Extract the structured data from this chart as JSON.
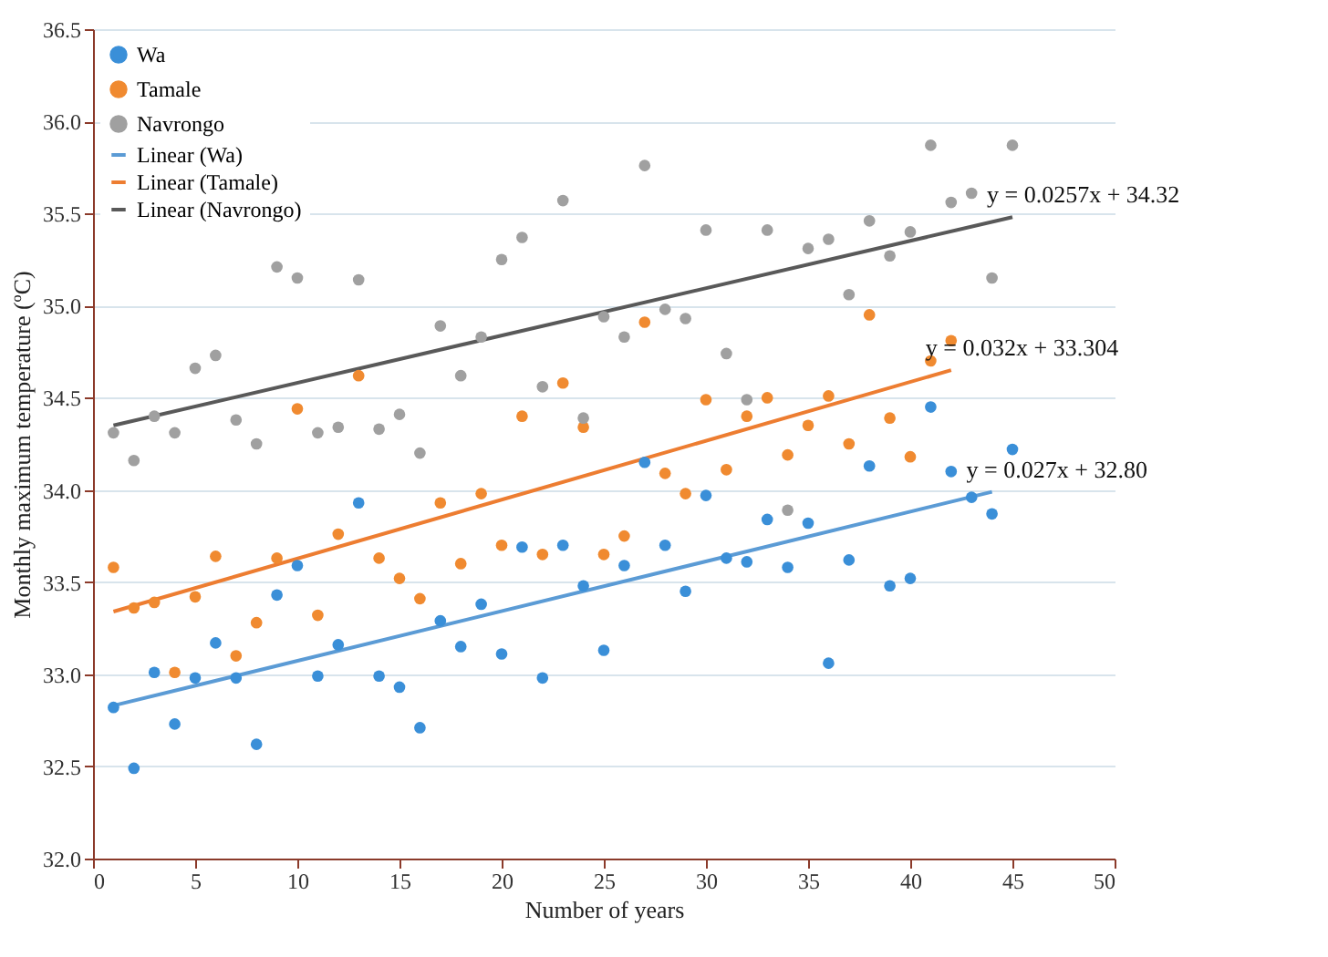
{
  "chart_data": {
    "type": "scatter",
    "xlabel": "Number of years",
    "ylabel": "Monthly maximum temperature (ºC)",
    "xlim": [
      0,
      50
    ],
    "xticks": [
      0,
      5,
      10,
      15,
      20,
      25,
      30,
      35,
      40,
      45,
      50
    ],
    "ylim": [
      32.0,
      36.5
    ],
    "yticks": [
      {
        "value": 32,
        "label": "32.0"
      },
      {
        "value": 32.5,
        "label": "32.5"
      },
      {
        "value": 33,
        "label": "33.0"
      },
      {
        "value": 33.5,
        "label": "33.5"
      },
      {
        "value": 34,
        "label": "34.0"
      },
      {
        "value": 34.5,
        "label": "34.5"
      },
      {
        "value": 35,
        "label": "35.0"
      },
      {
        "value": 35.5,
        "label": "35.5"
      },
      {
        "value": 36,
        "label": "36.0"
      },
      {
        "value": 36.5,
        "label": "36.5"
      }
    ],
    "grid": "y",
    "legend": "top left",
    "marker": "circle",
    "line_style": "solid",
    "x": [
      1,
      2,
      3,
      4,
      5,
      6,
      7,
      8,
      9,
      10,
      11,
      12,
      13,
      14,
      15,
      16,
      17,
      18,
      19,
      20,
      21,
      22,
      23,
      24,
      25,
      26,
      27,
      28,
      29,
      30,
      31,
      32,
      33,
      34,
      35,
      36,
      37,
      38,
      39,
      40,
      41,
      42,
      43,
      44,
      45
    ],
    "series": [
      {
        "name": "Wa",
        "color": "#3a8fd8",
        "values": [
          32.82,
          32.49,
          33.01,
          32.73,
          32.98,
          33.17,
          32.98,
          32.62,
          33.43,
          33.59,
          32.99,
          33.16,
          33.93,
          32.99,
          32.93,
          32.71,
          33.29,
          33.15,
          33.38,
          33.11,
          33.69,
          32.98,
          33.7,
          33.48,
          33.13,
          33.59,
          34.15,
          33.7,
          33.45,
          33.97,
          33.63,
          33.61,
          33.84,
          33.58,
          33.82,
          33.06,
          33.62,
          34.13,
          33.48,
          33.52,
          34.45,
          34.1,
          33.96,
          33.87,
          34.22
        ]
      },
      {
        "name": "Tamale",
        "color": "#f08a30",
        "x": [
          1,
          2,
          3,
          4,
          5,
          6,
          7,
          8,
          9,
          10,
          11,
          12,
          13,
          14,
          15,
          16,
          17,
          18,
          19,
          20,
          21,
          22,
          23,
          24,
          25,
          26,
          27,
          28,
          29,
          30,
          31,
          32,
          33,
          34,
          35,
          36,
          37,
          38,
          39,
          40,
          41,
          42
        ],
        "values": [
          33.58,
          33.36,
          33.39,
          33.01,
          33.42,
          33.64,
          33.1,
          33.28,
          33.63,
          34.44,
          33.32,
          33.76,
          34.62,
          33.63,
          33.52,
          33.41,
          33.93,
          33.6,
          33.98,
          33.7,
          34.4,
          33.65,
          34.58,
          34.34,
          33.65,
          33.75,
          34.91,
          34.09,
          33.98,
          34.49,
          34.11,
          34.4,
          34.5,
          34.19,
          34.35,
          34.51,
          34.25,
          34.95,
          34.39,
          34.18,
          34.7,
          34.81
        ]
      },
      {
        "name": "Navrongo",
        "color": "#a0a0a0",
        "values": [
          34.31,
          34.16,
          34.4,
          34.31,
          34.66,
          34.73,
          34.38,
          34.25,
          35.21,
          35.15,
          34.31,
          34.34,
          35.14,
          34.33,
          34.41,
          34.2,
          34.89,
          34.62,
          34.83,
          35.25,
          35.37,
          34.56,
          35.57,
          34.39,
          34.94,
          34.83,
          35.76,
          34.98,
          34.93,
          35.41,
          34.74,
          34.49,
          35.41,
          33.89,
          35.31,
          35.36,
          35.06,
          35.46,
          35.27,
          35.4,
          35.87,
          35.56,
          35.61,
          35.15,
          35.87
        ]
      },
      {
        "name": "Linear (Wa)",
        "type": "line",
        "marker": "none",
        "color": "#5b9bd5",
        "x": [
          1,
          44
        ],
        "values": [
          32.83,
          33.99
        ]
      },
      {
        "name": "Linear (Tamale)",
        "type": "line",
        "marker": "none",
        "color": "#ed7d31",
        "x": [
          1,
          42
        ],
        "values": [
          33.34,
          34.65
        ]
      },
      {
        "name": "Linear (Navrongo)",
        "type": "line",
        "marker": "none",
        "color": "#595959",
        "x": [
          1,
          45
        ],
        "values": [
          34.35,
          35.48
        ]
      }
    ],
    "annotations": [
      {
        "text": "y = 0.0257x + 34.32",
        "x": 45,
        "y": 35.48
      },
      {
        "text": "y = 0.032x + 33.304",
        "x": 42,
        "y": 34.65
      },
      {
        "text": "y = 0.027x + 32.80",
        "x": 44,
        "y": 33.99
      }
    ]
  }
}
